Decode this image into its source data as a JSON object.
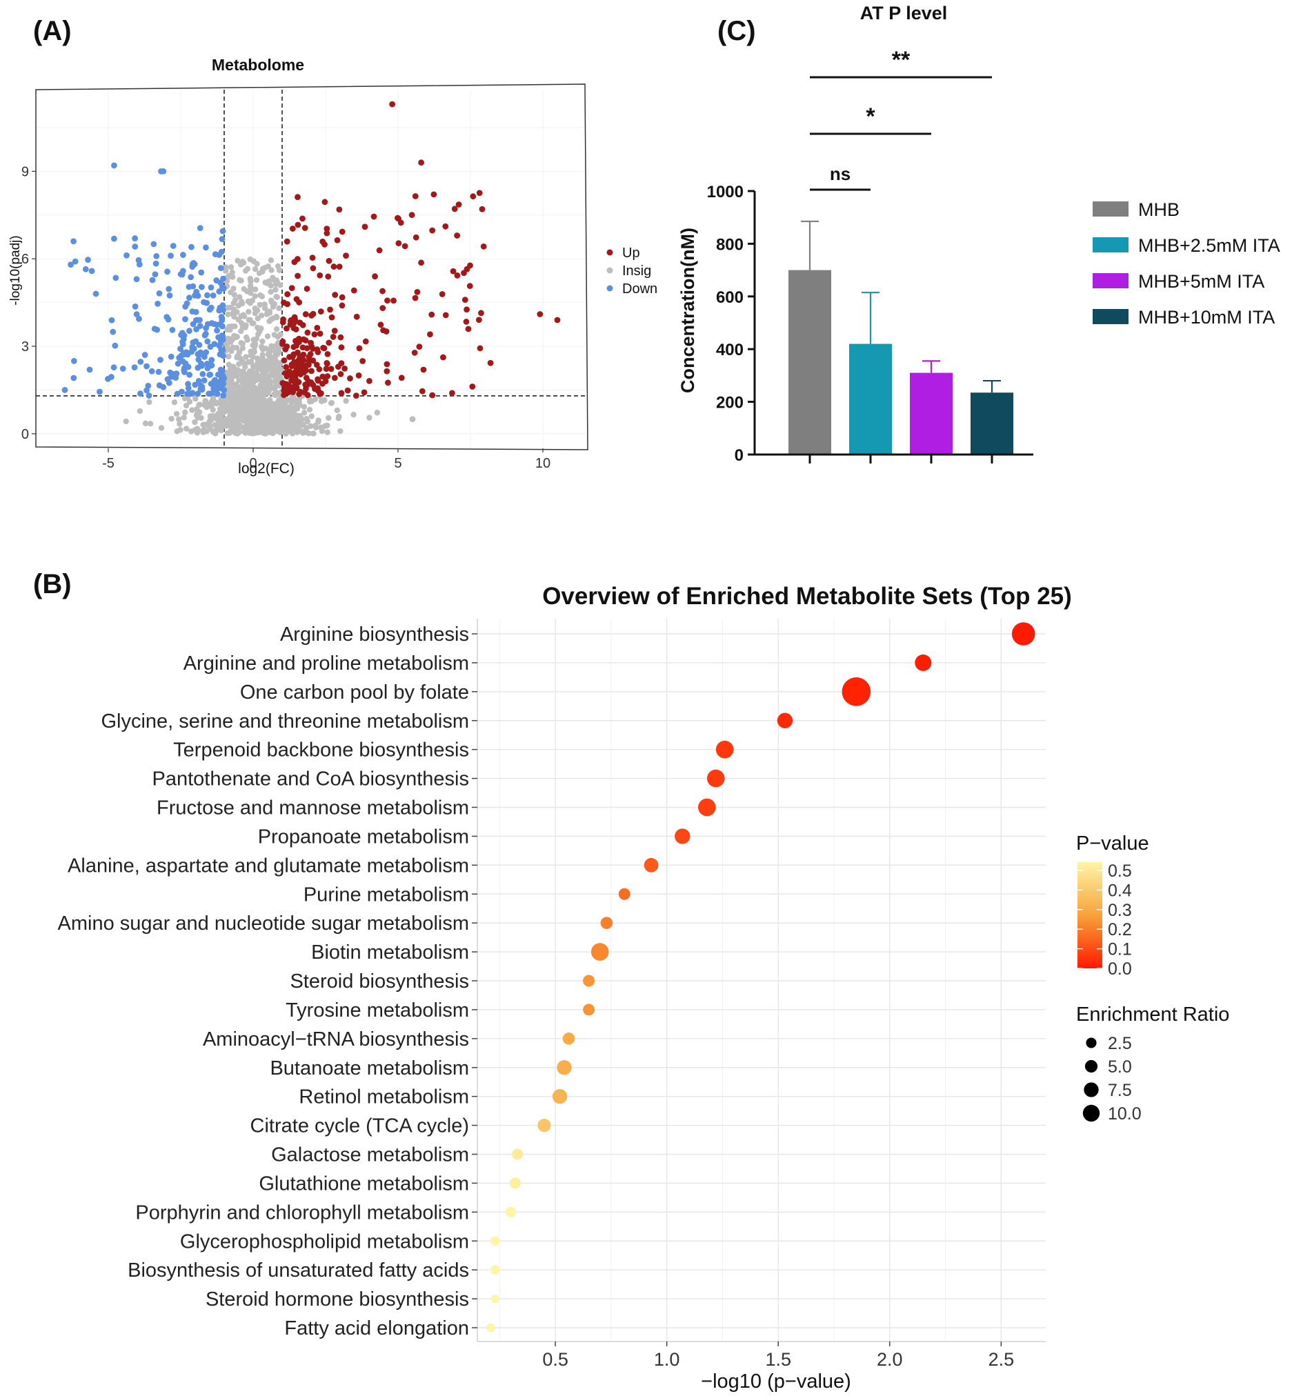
{
  "panels": {
    "a": {
      "label": "(A)"
    },
    "b": {
      "label": "(B)"
    },
    "c": {
      "label": "(C)"
    }
  },
  "chart_data": [
    {
      "id": "volcano",
      "type": "scatter",
      "title": "Metabolome",
      "xlabel": "log2(FC)",
      "ylabel": "-log10(padj)",
      "xlim": [
        -7.5,
        11.5
      ],
      "ylim": [
        -0.5,
        11.8
      ],
      "xticks": [
        -5,
        0,
        5,
        10
      ],
      "yticks": [
        0,
        3,
        6,
        9
      ],
      "thresholds": {
        "fc_left": -1,
        "fc_right": 1,
        "padj_line": 1.3
      },
      "legend": {
        "position": "right",
        "entries": [
          {
            "name": "Up",
            "color": "#a31818"
          },
          {
            "name": "Insig",
            "color": "#bdbdbd"
          },
          {
            "name": "Down",
            "color": "#5b8fe0"
          }
        ]
      },
      "groups": {
        "up": {
          "color": "#a31818",
          "count": 260,
          "approx_range": {
            "x": [
              1,
              10.6
            ],
            "y": [
              1.3,
              11.3
            ]
          }
        },
        "insig": {
          "color": "#bdbdbd",
          "count": 1100,
          "approx_range": {
            "x": [
              -4,
              5.5
            ],
            "y": [
              0,
              6
            ]
          }
        },
        "down": {
          "color": "#5b8fe0",
          "count": 240,
          "approx_range": {
            "x": [
              -6.5,
              -1
            ],
            "y": [
              1.3,
              9.2
            ]
          }
        }
      },
      "notable_points": [
        {
          "x": 4.8,
          "y": 11.3,
          "group": "up"
        },
        {
          "x": 5.8,
          "y": 9.3,
          "group": "up"
        },
        {
          "x": 10.5,
          "y": 3.9,
          "group": "up"
        },
        {
          "x": 9.9,
          "y": 4.1,
          "group": "up"
        },
        {
          "x": -4.8,
          "y": 9.2,
          "group": "down"
        },
        {
          "x": -3.1,
          "y": 9.0,
          "group": "down"
        },
        {
          "x": -6.2,
          "y": 6.6,
          "group": "down"
        },
        {
          "x": -6.5,
          "y": 1.5,
          "group": "down"
        },
        {
          "x": 5.5,
          "y": 0.5,
          "group": "insig"
        }
      ]
    },
    {
      "id": "enrichment",
      "type": "scatter",
      "title": "Overview of Enriched Metabolite Sets (Top 25)",
      "xlabel": "−log10 (p−value)",
      "xlim": [
        0.15,
        2.7
      ],
      "xticks": [
        0.5,
        1.0,
        1.5,
        2.0,
        2.5
      ],
      "xtick_labels": [
        "0.5",
        "1.0",
        "1.5",
        "2.0",
        "2.5"
      ],
      "pathways": [
        {
          "name": "Arginine biosynthesis",
          "x": 2.6,
          "ratio": 8.0
        },
        {
          "name": "Arginine and proline metabolism",
          "x": 2.15,
          "ratio": 5.0
        },
        {
          "name": "One carbon pool by folate",
          "x": 1.85,
          "ratio": 10.5
        },
        {
          "name": "Glycine, serine and threonine metabolism",
          "x": 1.53,
          "ratio": 4.5
        },
        {
          "name": "Terpenoid backbone biosynthesis",
          "x": 1.26,
          "ratio": 5.5
        },
        {
          "name": "Pantothenate and CoA biosynthesis",
          "x": 1.22,
          "ratio": 5.5
        },
        {
          "name": "Fructose and mannose metabolism",
          "x": 1.18,
          "ratio": 5.5
        },
        {
          "name": "Propanoate metabolism",
          "x": 1.07,
          "ratio": 4.5
        },
        {
          "name": "Alanine, aspartate and glutamate metabolism",
          "x": 0.93,
          "ratio": 4.0
        },
        {
          "name": "Purine metabolism",
          "x": 0.81,
          "ratio": 2.8
        },
        {
          "name": "Amino sugar and nucleotide sugar metabolism",
          "x": 0.73,
          "ratio": 3.0
        },
        {
          "name": "Biotin metabolism",
          "x": 0.7,
          "ratio": 5.5
        },
        {
          "name": "Steroid biosynthesis",
          "x": 0.65,
          "ratio": 2.8
        },
        {
          "name": "Tyrosine metabolism",
          "x": 0.65,
          "ratio": 2.8
        },
        {
          "name": "Aminoacyl−tRNA biosynthesis",
          "x": 0.56,
          "ratio": 3.0
        },
        {
          "name": "Butanoate metabolism",
          "x": 0.54,
          "ratio": 4.2
        },
        {
          "name": "Retinol metabolism",
          "x": 0.52,
          "ratio": 4.2
        },
        {
          "name": "Citrate cycle (TCA cycle)",
          "x": 0.45,
          "ratio": 3.5
        },
        {
          "name": "Galactose metabolism",
          "x": 0.33,
          "ratio": 2.5
        },
        {
          "name": "Glutathione metabolism",
          "x": 0.32,
          "ratio": 2.5
        },
        {
          "name": "Porphyrin and chlorophyll metabolism",
          "x": 0.3,
          "ratio": 2.3
        },
        {
          "name": "Glycerophospholipid metabolism",
          "x": 0.23,
          "ratio": 1.8
        },
        {
          "name": "Biosynthesis of unsaturated fatty acids",
          "x": 0.23,
          "ratio": 1.8
        },
        {
          "name": "Steroid hormone biosynthesis",
          "x": 0.23,
          "ratio": 1.3
        },
        {
          "name": "Fatty acid elongation",
          "x": 0.21,
          "ratio": 1.5
        }
      ],
      "color_legend": {
        "title": "P−value",
        "ticks": [
          "0.5",
          "0.4",
          "0.3",
          "0.2",
          "0.1",
          "0.0"
        ],
        "low_color": "#ff1a00",
        "mid_color": "#f7a23a",
        "high_color": "#fff5a6"
      },
      "size_legend": {
        "title": "Enrichment Ratio",
        "entries": [
          {
            "label": "2.5",
            "value": 2.5
          },
          {
            "label": "5.0",
            "value": 5.0
          },
          {
            "label": "7.5",
            "value": 7.5
          },
          {
            "label": "10.0",
            "value": 10.0
          }
        ]
      }
    },
    {
      "id": "atp",
      "type": "bar",
      "title": "AT P level",
      "ylabel": "Concentration(nM)",
      "ylim": [
        0,
        1000
      ],
      "yticks": [
        0,
        200,
        400,
        600,
        800,
        1000
      ],
      "categories": [
        "MHB",
        "MHB+2.5mM ITA",
        "MHB+5mM ITA",
        "MHB+10mM ITA"
      ],
      "values": [
        700,
        420,
        310,
        235
      ],
      "errors": [
        185,
        195,
        45,
        45
      ],
      "colors": [
        "#7f7f7f",
        "#1599b3",
        "#b01ee3",
        "#0f4a5e"
      ],
      "significance": [
        {
          "from": 0,
          "to": 1,
          "label": "ns"
        },
        {
          "from": 0,
          "to": 2,
          "label": "*"
        },
        {
          "from": 0,
          "to": 3,
          "label": "**"
        }
      ],
      "legend_position": "right"
    }
  ]
}
